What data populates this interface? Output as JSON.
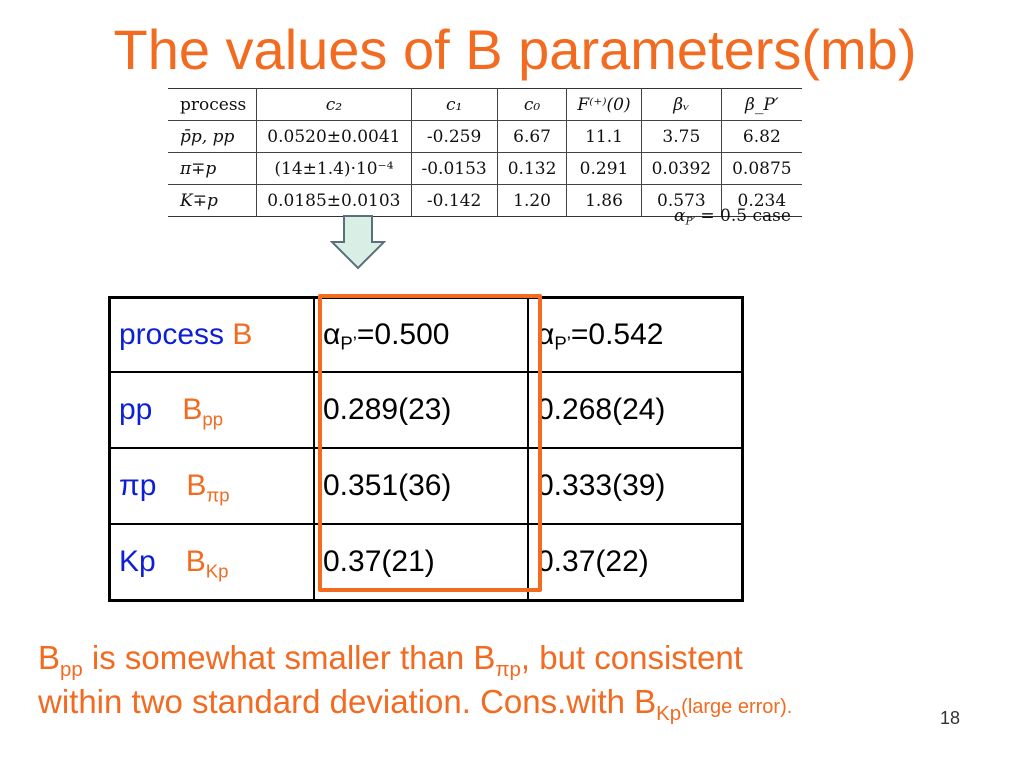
{
  "slide": {
    "title": "The values of B parameters(mb)",
    "page_number": "18"
  },
  "params_table": {
    "headers": [
      "process",
      "c₂",
      "c₁",
      "c₀",
      "F⁽⁺⁾(0)",
      "βᵥ",
      "β_P′"
    ],
    "rows": [
      [
        "p̄p, pp",
        "0.0520±0.0041",
        "-0.259",
        "6.67",
        "11.1",
        "3.75",
        "6.82"
      ],
      [
        "π∓p",
        "(14±1.4)·10⁻⁴",
        "-0.0153",
        "0.132",
        "0.291",
        "0.0392",
        "0.0875"
      ],
      [
        "K∓p",
        "0.0185±0.0103",
        "-0.142",
        "1.20",
        "1.86",
        "0.573",
        "0.234"
      ]
    ],
    "caption_symbol": "α",
    "caption_sub": "P′",
    "caption_rest": " = 0.5 case"
  },
  "b_table": {
    "header": {
      "process": "process",
      "b": "B",
      "alpha_symbol": "α",
      "alpha_sub": "P’",
      "col1_value": "=0.500",
      "col2_value": "=0.542"
    },
    "rows": [
      {
        "process": "pp",
        "b": "B",
        "b_sub": "pp",
        "v1": "0.289(23)",
        "v2": "0.268(24)"
      },
      {
        "process": "πp",
        "b": "B",
        "b_sub": "πp",
        "v1": "0.351(36)",
        "v2": "0.333(39)"
      },
      {
        "process": "Kp",
        "b": "B",
        "b_sub": "Kp",
        "v1": "0.37(21)",
        "v2": "0.37(22)"
      }
    ]
  },
  "note": {
    "b1": "B",
    "b1_sub": "pp",
    "part1": " is somewhat smaller than B",
    "b2_sub": "πp",
    "part2": ", but consistent",
    "line2": "within two standard deviation. Cons.with B",
    "b3_sub": "Kp",
    "small": "(large error)."
  },
  "colors": {
    "accent": "#f26b21",
    "blue": "#0d1fd6",
    "arrow_fill": "#d9efe6",
    "arrow_stroke": "#5a6f7a"
  }
}
